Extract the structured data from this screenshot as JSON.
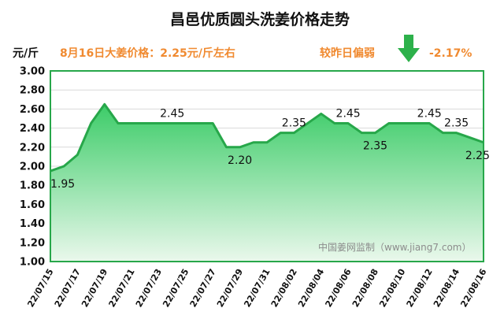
{
  "chart_data": {
    "type": "area",
    "title": "昌邑优质圆头洗姜价格走势",
    "ylabel": "元/斤",
    "price_note": "8月16日大姜价格：2.25元/斤左右",
    "change_label": "较昨日偏弱",
    "change_value": "-2.17%",
    "watermark": "中国姜网监制（www.jiang7.com）",
    "ylim": [
      1.0,
      3.0
    ],
    "yticks": [
      "1.00",
      "1.20",
      "1.40",
      "1.60",
      "1.80",
      "2.00",
      "2.20",
      "2.40",
      "2.60",
      "2.80",
      "3.00"
    ],
    "grid": true,
    "x": [
      "22/07/15",
      "22/07/16",
      "22/07/17",
      "22/07/18",
      "22/07/19",
      "22/07/20",
      "22/07/21",
      "22/07/22",
      "22/07/23",
      "22/07/24",
      "22/07/25",
      "22/07/26",
      "22/07/27",
      "22/07/28",
      "22/07/29",
      "22/07/30",
      "22/07/31",
      "22/08/01",
      "22/08/02",
      "22/08/03",
      "22/08/04",
      "22/08/05",
      "22/08/06",
      "22/08/07",
      "22/08/08",
      "22/08/09",
      "22/08/10",
      "22/08/11",
      "22/08/12",
      "22/08/13",
      "22/08/14",
      "22/08/15",
      "22/08/16"
    ],
    "xtick_labels": [
      "22/07/15",
      "22/07/17",
      "22/07/19",
      "22/07/21",
      "22/07/23",
      "22/07/25",
      "22/07/27",
      "22/07/29",
      "22/07/31",
      "22/08/02",
      "22/08/04",
      "22/08/06",
      "22/08/08",
      "22/08/10",
      "22/08/12",
      "22/08/14",
      "22/08/16"
    ],
    "values": [
      1.95,
      2.0,
      2.12,
      2.45,
      2.65,
      2.45,
      2.45,
      2.45,
      2.45,
      2.45,
      2.45,
      2.45,
      2.45,
      2.2,
      2.2,
      2.25,
      2.25,
      2.35,
      2.35,
      2.45,
      2.55,
      2.45,
      2.45,
      2.35,
      2.35,
      2.45,
      2.45,
      2.45,
      2.45,
      2.35,
      2.35,
      2.3,
      2.25
    ],
    "data_labels": [
      {
        "index": 0,
        "text": "1.95",
        "pos": "below"
      },
      {
        "index": 9,
        "text": "2.45",
        "pos": "above"
      },
      {
        "index": 14,
        "text": "2.20",
        "pos": "below"
      },
      {
        "index": 18,
        "text": "2.35",
        "pos": "above"
      },
      {
        "index": 22,
        "text": "2.45",
        "pos": "above"
      },
      {
        "index": 24,
        "text": "2.35",
        "pos": "below"
      },
      {
        "index": 28,
        "text": "2.45",
        "pos": "above"
      },
      {
        "index": 30,
        "text": "2.35",
        "pos": "above"
      },
      {
        "index": 32,
        "text": "2.25",
        "pos": "below"
      }
    ],
    "colors": {
      "line": "#27a74a",
      "fill_top": "#3ccc68",
      "fill_bottom": "#eaf8ec",
      "accent": "#f08a30",
      "arrow": "#2db14b",
      "grid": "#d9d9d9"
    }
  }
}
